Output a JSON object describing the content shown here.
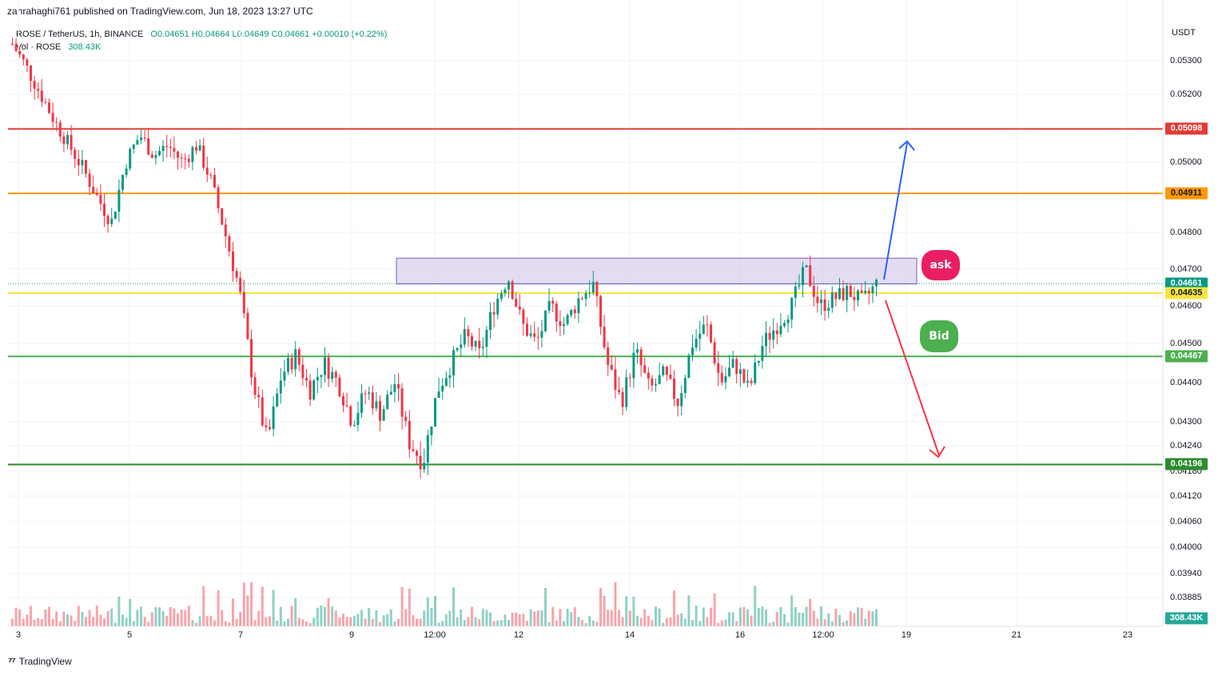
{
  "header": {
    "text": "zahrahaghi761 published on TradingView.com, Jun 18, 2023 13:27 UTC"
  },
  "legend": {
    "symbol": "ROSE / TetherUS, 1h, BINANCE",
    "ohlc": "O0.04651 H0.04664 L0.04649 C0.04661 +0.00010 (+0.22%)",
    "vol_label": "Vol · ROSE",
    "vol_value": "308.43K"
  },
  "currency": "USDT",
  "footer": {
    "brand": "TradingView",
    "logo_icon": "tradingview-logo-icon"
  },
  "colors": {
    "up": "#089981",
    "down": "#f23645",
    "red_line": "#e53935",
    "orange_line": "#ff9800",
    "yellow_line": "#f5e642",
    "green_line_light": "#4caf50",
    "green_line_dark": "#2e8b2e",
    "zone_fill": "#d1c4e9",
    "zone_border": "#7e57c2",
    "up_arrow": "#2962ff",
    "down_arrow": "#f23645",
    "ask_bubble": "#e91e63",
    "bid_bubble": "#4caf50"
  },
  "annotations": {
    "ask": "ask",
    "bid": "Bid"
  },
  "chart_data": {
    "type": "candlestick",
    "title": "ROSE / TetherUS, 1h, BINANCE",
    "y_axis_ticks": [
      "0.05300",
      "0.05200",
      "0.05000",
      "0.04800",
      "0.04700",
      "0.04600",
      "0.04500",
      "0.04400",
      "0.04300",
      "0.04240",
      "0.04180",
      "0.04120",
      "0.04060",
      "0.04000",
      "0.03940",
      "0.03885"
    ],
    "x_axis_ticks": [
      "3",
      "5",
      "7",
      "9",
      "12:00",
      "12",
      "14",
      "16",
      "12:00",
      "19",
      "21",
      "23"
    ],
    "horizontal_levels": [
      {
        "value": 0.05098,
        "label": "0.05098",
        "color": "#e53935"
      },
      {
        "value": 0.04911,
        "label": "0.04911",
        "color": "#ff9800"
      },
      {
        "value": 0.04661,
        "label": "0.04661",
        "color": "#089981"
      },
      {
        "value": 0.04635,
        "label": "0.04635",
        "color": "#f5e642"
      },
      {
        "value": 0.04467,
        "label": "0.04467",
        "color": "#4caf50"
      },
      {
        "value": 0.04196,
        "label": "0.04196",
        "color": "#2e8b2e"
      }
    ],
    "resistance_zone": {
      "low": 0.0466,
      "high": 0.0473
    },
    "volume_badge": "308.43K",
    "series": [
      {
        "name": "ROSE/USDT",
        "close_path": [
          0.0535,
          0.0528,
          0.052,
          0.0512,
          0.0505,
          0.0498,
          0.049,
          0.0483,
          0.05,
          0.0508,
          0.0502,
          0.0505,
          0.05,
          0.0505,
          0.0495,
          0.048,
          0.0465,
          0.044,
          0.0425,
          0.0442,
          0.0447,
          0.0438,
          0.0445,
          0.044,
          0.043,
          0.0438,
          0.0432,
          0.044,
          0.0425,
          0.042,
          0.0438,
          0.0445,
          0.0452,
          0.0447,
          0.046,
          0.0468,
          0.0455,
          0.045,
          0.046,
          0.0455,
          0.0462,
          0.0466,
          0.0445,
          0.0435,
          0.0448,
          0.0438,
          0.0442,
          0.0435,
          0.045,
          0.0455,
          0.044,
          0.0445,
          0.0438,
          0.045,
          0.0455,
          0.046,
          0.047,
          0.046,
          0.0462,
          0.0464,
          0.0461,
          0.0466
        ]
      }
    ],
    "volume": {
      "last": "308.43K"
    }
  }
}
